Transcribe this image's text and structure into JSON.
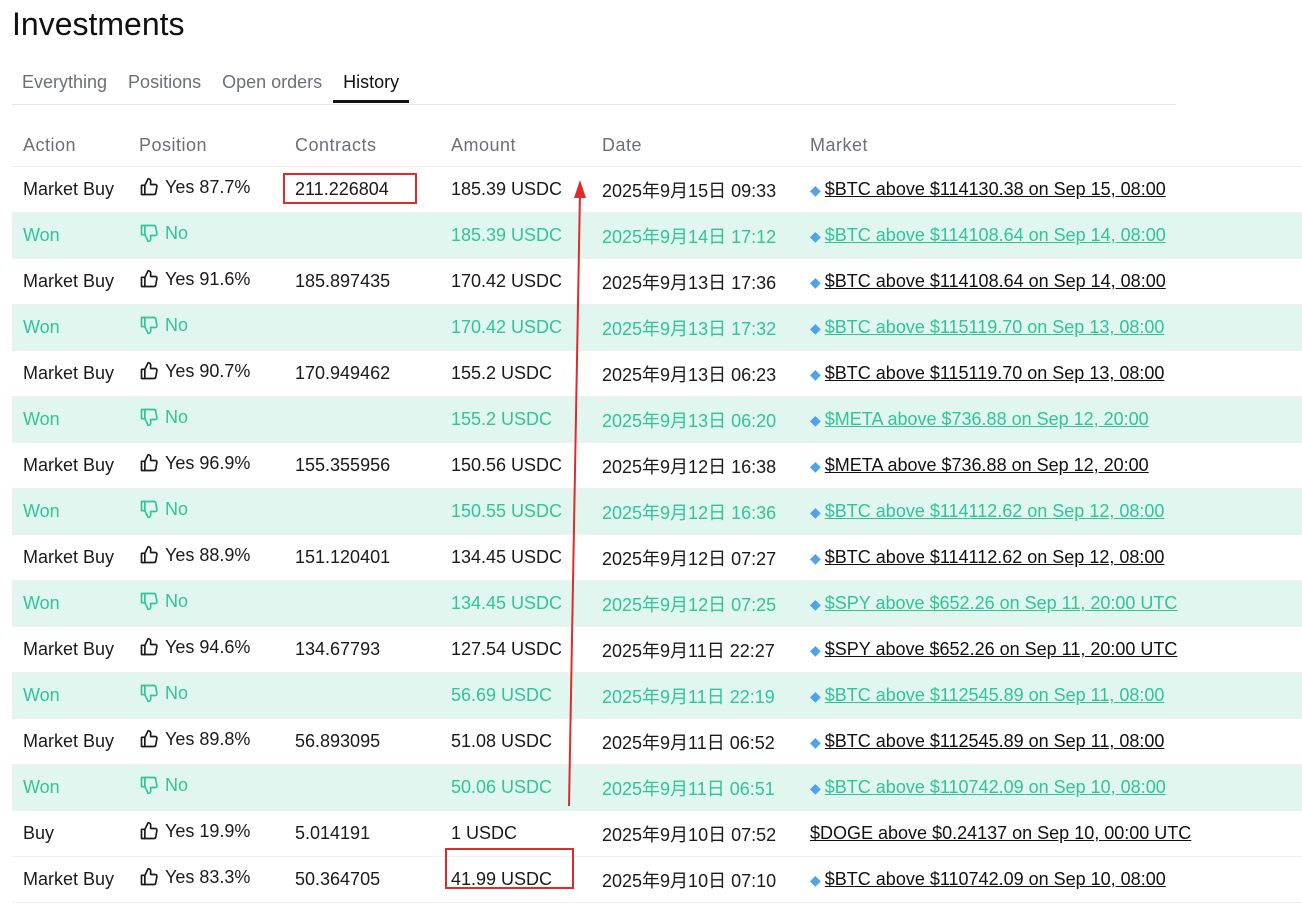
{
  "title": "Investments",
  "tabs": [
    {
      "label": "Everything",
      "active": false
    },
    {
      "label": "Positions",
      "active": false
    },
    {
      "label": "Open orders",
      "active": false
    },
    {
      "label": "History",
      "active": true
    }
  ],
  "table": {
    "columns": [
      "Action",
      "Position",
      "Contracts",
      "Amount",
      "Date",
      "Market"
    ],
    "rows": [
      {
        "action": "Market Buy",
        "position": "Yes 87.7%",
        "icon": "thumbs-up-icon",
        "contracts": "211.226804",
        "amount": "185.39 USDC",
        "date": "2025年9月15日 09:33",
        "gem": true,
        "market": "$BTC above $114130.38 on Sep 15, 08:00",
        "won": false
      },
      {
        "action": "Won",
        "position": "No",
        "icon": "thumbs-down-icon",
        "contracts": "",
        "amount": "185.39 USDC",
        "date": "2025年9月14日 17:12",
        "gem": true,
        "market": "$BTC above $114108.64 on Sep 14, 08:00",
        "won": true
      },
      {
        "action": "Market Buy",
        "position": "Yes 91.6%",
        "icon": "thumbs-up-icon",
        "contracts": "185.897435",
        "amount": "170.42 USDC",
        "date": "2025年9月13日 17:36",
        "gem": true,
        "market": "$BTC above $114108.64 on Sep 14, 08:00",
        "won": false
      },
      {
        "action": "Won",
        "position": "No",
        "icon": "thumbs-down-icon",
        "contracts": "",
        "amount": "170.42 USDC",
        "date": "2025年9月13日 17:32",
        "gem": true,
        "market": "$BTC above $115119.70 on Sep 13, 08:00",
        "won": true
      },
      {
        "action": "Market Buy",
        "position": "Yes 90.7%",
        "icon": "thumbs-up-icon",
        "contracts": "170.949462",
        "amount": "155.2 USDC",
        "date": "2025年9月13日 06:23",
        "gem": true,
        "market": "$BTC above $115119.70 on Sep 13, 08:00",
        "won": false
      },
      {
        "action": "Won",
        "position": "No",
        "icon": "thumbs-down-icon",
        "contracts": "",
        "amount": "155.2 USDC",
        "date": "2025年9月13日 06:20",
        "gem": true,
        "market": "$META above $736.88 on Sep 12, 20:00",
        "won": true
      },
      {
        "action": "Market Buy",
        "position": "Yes 96.9%",
        "icon": "thumbs-up-icon",
        "contracts": "155.355956",
        "amount": "150.56 USDC",
        "date": "2025年9月12日 16:38",
        "gem": true,
        "market": "$META above $736.88 on Sep 12, 20:00",
        "won": false
      },
      {
        "action": "Won",
        "position": "No",
        "icon": "thumbs-down-icon",
        "contracts": "",
        "amount": "150.55 USDC",
        "date": "2025年9月12日 16:36",
        "gem": true,
        "market": "$BTC above $114112.62 on Sep 12, 08:00",
        "won": true
      },
      {
        "action": "Market Buy",
        "position": "Yes 88.9%",
        "icon": "thumbs-up-icon",
        "contracts": "151.120401",
        "amount": "134.45 USDC",
        "date": "2025年9月12日 07:27",
        "gem": true,
        "market": "$BTC above $114112.62 on Sep 12, 08:00",
        "won": false
      },
      {
        "action": "Won",
        "position": "No",
        "icon": "thumbs-down-icon",
        "contracts": "",
        "amount": "134.45 USDC",
        "date": "2025年9月12日 07:25",
        "gem": true,
        "market": "$SPY above $652.26 on Sep 11, 20:00 UTC",
        "won": true
      },
      {
        "action": "Market Buy",
        "position": "Yes 94.6%",
        "icon": "thumbs-up-icon",
        "contracts": "134.67793",
        "amount": "127.54 USDC",
        "date": "2025年9月11日 22:27",
        "gem": true,
        "market": "$SPY above $652.26 on Sep 11, 20:00 UTC",
        "won": false
      },
      {
        "action": "Won",
        "position": "No",
        "icon": "thumbs-down-icon",
        "contracts": "",
        "amount": "56.69 USDC",
        "date": "2025年9月11日 22:19",
        "gem": true,
        "market": "$BTC above $112545.89 on Sep 11, 08:00",
        "won": true
      },
      {
        "action": "Market Buy",
        "position": "Yes 89.8%",
        "icon": "thumbs-up-icon",
        "contracts": "56.893095",
        "amount": "51.08 USDC",
        "date": "2025年9月11日 06:52",
        "gem": true,
        "market": "$BTC above $112545.89 on Sep 11, 08:00",
        "won": false
      },
      {
        "action": "Won",
        "position": "No",
        "icon": "thumbs-down-icon",
        "contracts": "",
        "amount": "50.06 USDC",
        "date": "2025年9月11日 06:51",
        "gem": true,
        "market": "$BTC above $110742.09 on Sep 10, 08:00",
        "won": true
      },
      {
        "action": "Buy",
        "position": "Yes 19.9%",
        "icon": "thumbs-up-icon",
        "contracts": "5.014191",
        "amount": "1 USDC",
        "date": "2025年9月10日 07:52",
        "gem": false,
        "market": "$DOGE above $0.24137 on Sep 10, 00:00 UTC",
        "won": false
      },
      {
        "action": "Market Buy",
        "position": "Yes 83.3%",
        "icon": "thumbs-up-icon",
        "contracts": "50.364705",
        "amount": "41.99 USDC",
        "date": "2025年9月10日 07:10",
        "gem": true,
        "market": "$BTC above $110742.09 on Sep 10, 08:00",
        "won": false
      }
    ]
  },
  "colors": {
    "won_row_bg": "#e1f6ee",
    "won_text": "#2fc49a",
    "annotation_red": "#e02b2b"
  }
}
